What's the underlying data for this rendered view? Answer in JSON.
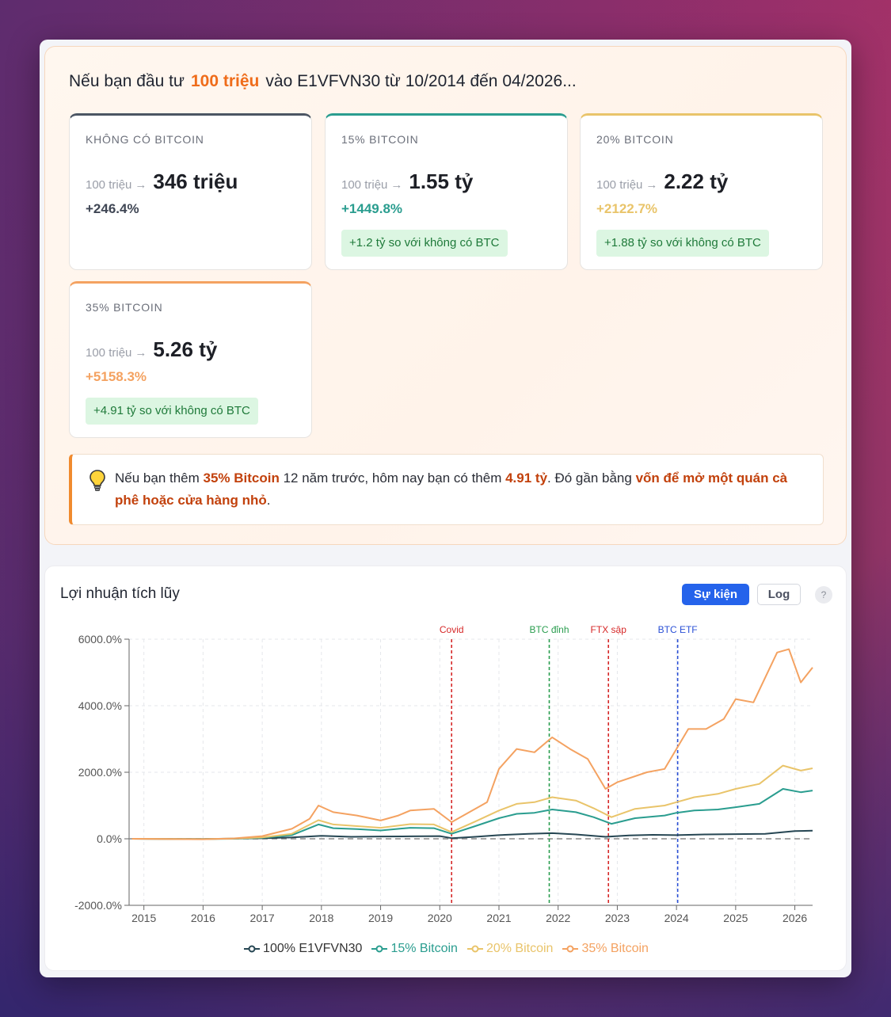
{
  "summary": {
    "headline_prefix": "Nếu bạn đầu tư",
    "headline_amount": "100 triệu",
    "headline_suffix": "vào E1VFVN30 từ 10/2014 đến 04/2026...",
    "cards": [
      {
        "label": "KHÔNG CÓ BITCOIN",
        "from": "100 triệu",
        "to": "346 triệu",
        "pct": "+246.4%",
        "diff": "",
        "accent": "#4b5563",
        "pct_color": "#3f4654"
      },
      {
        "label": "15% BITCOIN",
        "from": "100 triệu",
        "to": "1.55 tỷ",
        "pct": "+1449.8%",
        "diff": "+1.2 tỷ so với không có BTC",
        "accent": "#2a9d8f",
        "pct_color": "#2a9d8f"
      },
      {
        "label": "20% BITCOIN",
        "from": "100 triệu",
        "to": "2.22 tỷ",
        "pct": "+2122.7%",
        "diff": "+1.88 tỷ so với không có BTC",
        "accent": "#e9c46a",
        "pct_color": "#e9c46a"
      },
      {
        "label": "35% BITCOIN",
        "from": "100 triệu",
        "to": "5.26 tỷ",
        "pct": "+5158.3%",
        "diff": "+4.91 tỷ so với không có BTC",
        "accent": "#f4a261",
        "pct_color": "#f4a261"
      }
    ],
    "arrow": "→"
  },
  "insight": {
    "t1": "Nếu bạn thêm ",
    "h1": "35% Bitcoin",
    "t2": " 12 năm trước, hôm nay bạn có thêm ",
    "h2": "4.91 tỷ",
    "t3": ". Đó gần bằng ",
    "h3": "vốn để mở một quán cà phê hoặc cửa hàng nhỏ",
    "t4": "."
  },
  "chart_panel": {
    "title": "Lợi nhuận tích lũy",
    "btn_events": "Sự kiện",
    "btn_log": "Log",
    "btn_help": "?"
  },
  "chart_data": {
    "type": "line",
    "xlabel": "",
    "ylabel": "",
    "xlim": [
      2014.75,
      2026.3
    ],
    "ylim": [
      -2000,
      6000
    ],
    "y_ticks": [
      6000,
      4000,
      2000,
      0,
      -2000
    ],
    "y_tick_labels": [
      "6000.0%",
      "4000.0%",
      "2000.0%",
      "0.0%",
      "-2000.0%"
    ],
    "x_ticks": [
      2015,
      2016,
      2017,
      2018,
      2019,
      2020,
      2021,
      2022,
      2023,
      2024,
      2025,
      2026
    ],
    "x_tick_labels": [
      "2015",
      "2016",
      "2017",
      "2018",
      "2019",
      "2020",
      "2021",
      "2022",
      "2023",
      "2024",
      "2025",
      "2026"
    ],
    "grid": true,
    "legend_position": "bottom",
    "baseline": 0,
    "events": [
      {
        "label": "Covid",
        "x": 2020.2,
        "color": "#d62828"
      },
      {
        "label": "BTC đỉnh",
        "x": 2021.85,
        "color": "#2a9d4f"
      },
      {
        "label": "FTX sập",
        "x": 2022.85,
        "color": "#d62828"
      },
      {
        "label": "BTC ETF",
        "x": 2024.02,
        "color": "#2b50d6"
      }
    ],
    "series": [
      {
        "name": "100% E1VFVN30",
        "color": "#264653",
        "x": [
          2014.8,
          2015.5,
          2016.0,
          2016.5,
          2017.0,
          2017.5,
          2018.0,
          2018.5,
          2019.0,
          2019.5,
          2020.0,
          2020.2,
          2020.6,
          2021.0,
          2021.5,
          2021.9,
          2022.3,
          2022.8,
          2023.2,
          2023.6,
          2024.0,
          2024.5,
          2025.0,
          2025.5,
          2026.0,
          2026.3
        ],
        "values": [
          0,
          -5,
          -8,
          5,
          15,
          40,
          90,
          60,
          70,
          75,
          80,
          20,
          60,
          110,
          150,
          170,
          130,
          60,
          100,
          120,
          110,
          130,
          140,
          150,
          230,
          246
        ]
      },
      {
        "name": "15% Bitcoin",
        "color": "#2a9d8f",
        "x": [
          2014.8,
          2015.5,
          2016.0,
          2016.5,
          2017.0,
          2017.5,
          2017.95,
          2018.2,
          2018.6,
          2019.0,
          2019.5,
          2019.9,
          2020.2,
          2020.6,
          2021.0,
          2021.3,
          2021.6,
          2021.9,
          2022.3,
          2022.6,
          2022.9,
          2023.3,
          2023.8,
          2024.0,
          2024.3,
          2024.7,
          2025.0,
          2025.4,
          2025.8,
          2026.1,
          2026.3
        ],
        "values": [
          0,
          -5,
          -10,
          0,
          30,
          110,
          430,
          320,
          290,
          250,
          330,
          320,
          150,
          380,
          620,
          750,
          780,
          880,
          800,
          650,
          450,
          620,
          700,
          780,
          850,
          880,
          950,
          1050,
          1500,
          1400,
          1450
        ]
      },
      {
        "name": "20% Bitcoin",
        "color": "#e9c46a",
        "x": [
          2014.8,
          2015.5,
          2016.0,
          2016.5,
          2017.0,
          2017.5,
          2017.95,
          2018.2,
          2018.6,
          2019.0,
          2019.5,
          2019.9,
          2020.2,
          2020.6,
          2021.0,
          2021.3,
          2021.6,
          2021.9,
          2022.3,
          2022.6,
          2022.9,
          2023.3,
          2023.8,
          2024.0,
          2024.3,
          2024.7,
          2025.0,
          2025.4,
          2025.8,
          2026.1,
          2026.3
        ],
        "values": [
          0,
          -5,
          -10,
          5,
          40,
          150,
          560,
          430,
          380,
          330,
          440,
          430,
          200,
          520,
          850,
          1050,
          1100,
          1250,
          1150,
          920,
          650,
          900,
          1000,
          1100,
          1250,
          1350,
          1500,
          1650,
          2200,
          2050,
          2120
        ]
      },
      {
        "name": "35% Bitcoin",
        "color": "#f4a261",
        "x": [
          2014.8,
          2015.5,
          2016.0,
          2016.5,
          2017.0,
          2017.5,
          2017.8,
          2017.95,
          2018.2,
          2018.6,
          2019.0,
          2019.3,
          2019.5,
          2019.9,
          2020.2,
          2020.5,
          2020.8,
          2021.0,
          2021.3,
          2021.6,
          2021.9,
          2022.2,
          2022.5,
          2022.8,
          2023.0,
          2023.5,
          2023.8,
          2024.0,
          2024.2,
          2024.5,
          2024.8,
          2025.0,
          2025.3,
          2025.7,
          2025.9,
          2026.1,
          2026.3
        ],
        "values": [
          0,
          -10,
          -15,
          10,
          80,
          300,
          600,
          1000,
          800,
          700,
          550,
          700,
          850,
          900,
          500,
          800,
          1100,
          2100,
          2700,
          2600,
          3050,
          2700,
          2400,
          1500,
          1700,
          2000,
          2100,
          2700,
          3300,
          3300,
          3600,
          4200,
          4100,
          5600,
          5700,
          4700,
          5150
        ]
      }
    ]
  }
}
